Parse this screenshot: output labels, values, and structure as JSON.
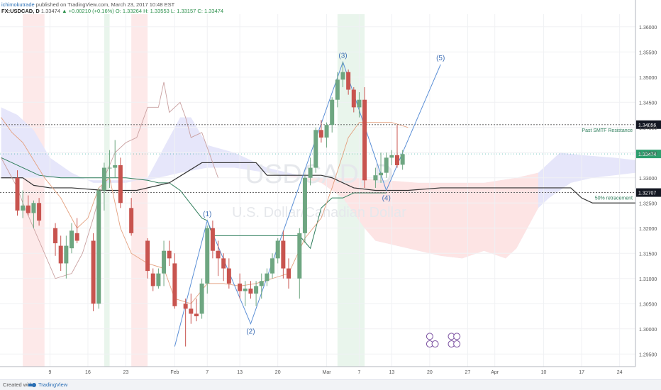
{
  "header": {
    "author": "ichimokutrade",
    "published": "published on TradingView.com, March 23, 2017 10:48 EST",
    "symbol": "FX:USDCAD, D",
    "last": "1.33474",
    "change": "▲ +0.00210 (+0.16%)",
    "ohlc": "O: 1.33264 H: 1.33553 L: 1.33157 C: 1.33474"
  },
  "footer": {
    "created": "Created with",
    "brand": "TradingView"
  },
  "chart_data": {
    "type": "candlestick",
    "symbol": "USDCAD",
    "watermark_symbol": "USDCAD, D",
    "watermark_name": "U.S. Dollar/Canadian Dollar",
    "ylim": [
      1.2925,
      1.3625
    ],
    "price_ticks": [
      "1.36000",
      "1.35500",
      "1.35000",
      "1.34500",
      "1.34000",
      "1.33500",
      "1.33000",
      "1.32500",
      "1.32000",
      "1.31500",
      "1.31000",
      "1.30500",
      "1.30000",
      "1.29500"
    ],
    "date_ticks": [
      {
        "label": "9",
        "d": 8
      },
      {
        "label": "16",
        "d": 15
      },
      {
        "label": "23",
        "d": 22
      },
      {
        "label": "Feb",
        "d": 31
      },
      {
        "label": "7",
        "d": 37
      },
      {
        "label": "13",
        "d": 43
      },
      {
        "label": "20",
        "d": 50
      },
      {
        "label": "Mar",
        "d": 59
      },
      {
        "label": "7",
        "d": 65
      },
      {
        "label": "13",
        "d": 71
      },
      {
        "label": "20",
        "d": 78
      },
      {
        "label": "27",
        "d": 85
      },
      {
        "label": "Apr",
        "d": 90
      },
      {
        "label": "10",
        "d": 99
      },
      {
        "label": "17",
        "d": 106
      },
      {
        "label": "24",
        "d": 113
      }
    ],
    "candles": [
      {
        "d": 2,
        "o": 1.33,
        "h": 1.3315,
        "l": 1.3225,
        "c": 1.3235
      },
      {
        "d": 3,
        "o": 1.3235,
        "h": 1.3275,
        "l": 1.322,
        "c": 1.3245
      },
      {
        "d": 4,
        "o": 1.3245,
        "h": 1.3265,
        "l": 1.3225,
        "c": 1.323
      },
      {
        "d": 5,
        "o": 1.323,
        "h": 1.3255,
        "l": 1.32,
        "c": 1.325
      },
      {
        "d": 6,
        "o": 1.325,
        "h": 1.326,
        "l": 1.3205,
        "c": 1.3215
      },
      {
        "d": 9,
        "o": 1.32,
        "h": 1.321,
        "l": 1.3145,
        "c": 1.317
      },
      {
        "d": 10,
        "o": 1.3165,
        "h": 1.3185,
        "l": 1.3115,
        "c": 1.313
      },
      {
        "d": 11,
        "o": 1.313,
        "h": 1.3185,
        "l": 1.31,
        "c": 1.3165
      },
      {
        "d": 12,
        "o": 1.316,
        "h": 1.321,
        "l": 1.315,
        "c": 1.3195
      },
      {
        "d": 13,
        "o": 1.319,
        "h": 1.322,
        "l": 1.317,
        "c": 1.3175
      },
      {
        "d": 16,
        "o": 1.3175,
        "h": 1.319,
        "l": 1.3035,
        "c": 1.305
      },
      {
        "d": 17,
        "o": 1.305,
        "h": 1.328,
        "l": 1.304,
        "c": 1.3275
      },
      {
        "d": 18,
        "o": 1.3275,
        "h": 1.333,
        "l": 1.3235,
        "c": 1.332
      },
      {
        "d": 19,
        "o": 1.332,
        "h": 1.3355,
        "l": 1.328,
        "c": 1.332
      },
      {
        "d": 20,
        "o": 1.332,
        "h": 1.3375,
        "l": 1.33,
        "c": 1.3325
      },
      {
        "d": 21,
        "o": 1.3325,
        "h": 1.334,
        "l": 1.324,
        "c": 1.325
      },
      {
        "d": 23,
        "o": 1.324,
        "h": 1.326,
        "l": 1.3185,
        "c": 1.319
      },
      {
        "d": 26,
        "o": 1.3175,
        "h": 1.318,
        "l": 1.31,
        "c": 1.3115
      },
      {
        "d": 27,
        "o": 1.311,
        "h": 1.312,
        "l": 1.3075,
        "c": 1.3085
      },
      {
        "d": 28,
        "o": 1.3085,
        "h": 1.312,
        "l": 1.308,
        "c": 1.311
      },
      {
        "d": 29,
        "o": 1.311,
        "h": 1.3175,
        "l": 1.3085,
        "c": 1.3155
      },
      {
        "d": 30,
        "o": 1.3155,
        "h": 1.3175,
        "l": 1.3125,
        "c": 1.314
      },
      {
        "d": 31,
        "o": 1.313,
        "h": 1.315,
        "l": 1.304,
        "c": 1.3045
      },
      {
        "d": 33,
        "o": 1.305,
        "h": 1.306,
        "l": 1.2965,
        "c": 1.304
      },
      {
        "d": 34,
        "o": 1.304,
        "h": 1.307,
        "l": 1.301,
        "c": 1.303
      },
      {
        "d": 35,
        "o": 1.303,
        "h": 1.306,
        "l": 1.3015,
        "c": 1.3025
      },
      {
        "d": 36,
        "o": 1.303,
        "h": 1.31,
        "l": 1.302,
        "c": 1.309
      },
      {
        "d": 37,
        "o": 1.309,
        "h": 1.3205,
        "l": 1.307,
        "c": 1.32
      },
      {
        "d": 38,
        "o": 1.32,
        "h": 1.3215,
        "l": 1.314,
        "c": 1.3155
      },
      {
        "d": 39,
        "o": 1.3155,
        "h": 1.3175,
        "l": 1.3105,
        "c": 1.314
      },
      {
        "d": 40,
        "o": 1.314,
        "h": 1.315,
        "l": 1.3095,
        "c": 1.312
      },
      {
        "d": 41,
        "o": 1.312,
        "h": 1.314,
        "l": 1.308,
        "c": 1.309
      },
      {
        "d": 43,
        "o": 1.309,
        "h": 1.311,
        "l": 1.306,
        "c": 1.3075
      },
      {
        "d": 44,
        "o": 1.3075,
        "h": 1.3095,
        "l": 1.3045,
        "c": 1.308
      },
      {
        "d": 45,
        "o": 1.308,
        "h": 1.3095,
        "l": 1.306,
        "c": 1.307
      },
      {
        "d": 46,
        "o": 1.307,
        "h": 1.3095,
        "l": 1.3045,
        "c": 1.3085
      },
      {
        "d": 47,
        "o": 1.3085,
        "h": 1.311,
        "l": 1.306,
        "c": 1.3095
      },
      {
        "d": 48,
        "o": 1.3095,
        "h": 1.312,
        "l": 1.3085,
        "c": 1.311
      },
      {
        "d": 49,
        "o": 1.311,
        "h": 1.315,
        "l": 1.31,
        "c": 1.314
      },
      {
        "d": 50,
        "o": 1.314,
        "h": 1.318,
        "l": 1.313,
        "c": 1.3175
      },
      {
        "d": 51,
        "o": 1.3175,
        "h": 1.3195,
        "l": 1.31,
        "c": 1.312
      },
      {
        "d": 52,
        "o": 1.312,
        "h": 1.314,
        "l": 1.308,
        "c": 1.31
      },
      {
        "d": 54,
        "o": 1.31,
        "h": 1.32,
        "l": 1.306,
        "c": 1.319
      },
      {
        "d": 55,
        "o": 1.319,
        "h": 1.3305,
        "l": 1.317,
        "c": 1.33
      },
      {
        "d": 56,
        "o": 1.33,
        "h": 1.334,
        "l": 1.3285,
        "c": 1.332
      },
      {
        "d": 57,
        "o": 1.332,
        "h": 1.34,
        "l": 1.331,
        "c": 1.3395
      },
      {
        "d": 58,
        "o": 1.3395,
        "h": 1.3415,
        "l": 1.337,
        "c": 1.338
      },
      {
        "d": 59,
        "o": 1.338,
        "h": 1.341,
        "l": 1.336,
        "c": 1.3405
      },
      {
        "d": 60,
        "o": 1.3405,
        "h": 1.346,
        "l": 1.339,
        "c": 1.3455
      },
      {
        "d": 61,
        "o": 1.3455,
        "h": 1.351,
        "l": 1.344,
        "c": 1.3495
      },
      {
        "d": 62,
        "o": 1.3495,
        "h": 1.353,
        "l": 1.348,
        "c": 1.351
      },
      {
        "d": 63,
        "o": 1.351,
        "h": 1.3515,
        "l": 1.3465,
        "c": 1.3475
      },
      {
        "d": 64,
        "o": 1.3475,
        "h": 1.348,
        "l": 1.343,
        "c": 1.344
      },
      {
        "d": 65,
        "o": 1.344,
        "h": 1.347,
        "l": 1.342,
        "c": 1.3455
      },
      {
        "d": 66,
        "o": 1.3455,
        "h": 1.348,
        "l": 1.328,
        "c": 1.3295
      },
      {
        "d": 68,
        "o": 1.3295,
        "h": 1.332,
        "l": 1.328,
        "c": 1.3305
      },
      {
        "d": 69,
        "o": 1.3305,
        "h": 1.335,
        "l": 1.329,
        "c": 1.331
      },
      {
        "d": 70,
        "o": 1.331,
        "h": 1.335,
        "l": 1.33,
        "c": 1.334
      },
      {
        "d": 71,
        "o": 1.334,
        "h": 1.3355,
        "l": 1.3325,
        "c": 1.3345
      },
      {
        "d": 72,
        "o": 1.3345,
        "h": 1.3405,
        "l": 1.332,
        "c": 1.3325
      },
      {
        "d": 73,
        "o": 1.3326,
        "h": 1.3355,
        "l": 1.3316,
        "c": 1.3347
      }
    ],
    "waves": [
      {
        "label": "(1)",
        "d": 37,
        "p": 1.3215,
        "pos": "above"
      },
      {
        "label": "(2)",
        "d": 45,
        "p": 1.301,
        "pos": "below"
      },
      {
        "label": "(3)",
        "d": 62,
        "p": 1.353,
        "pos": "above"
      },
      {
        "label": "(4)",
        "d": 70,
        "p": 1.3275,
        "pos": "below"
      },
      {
        "label": "(5)",
        "d": 80,
        "p": 1.3525,
        "pos": "above"
      }
    ],
    "horizontal_levels": [
      {
        "price": 1.34056,
        "label": "1.34056",
        "text": "Past SMTF Resistance",
        "color": "#2e7d5b"
      },
      {
        "price": 1.32707,
        "label": "1.32707",
        "text": "50% retracement",
        "color": "#2e7d5b"
      }
    ],
    "current_price_label": "1.33474"
  }
}
